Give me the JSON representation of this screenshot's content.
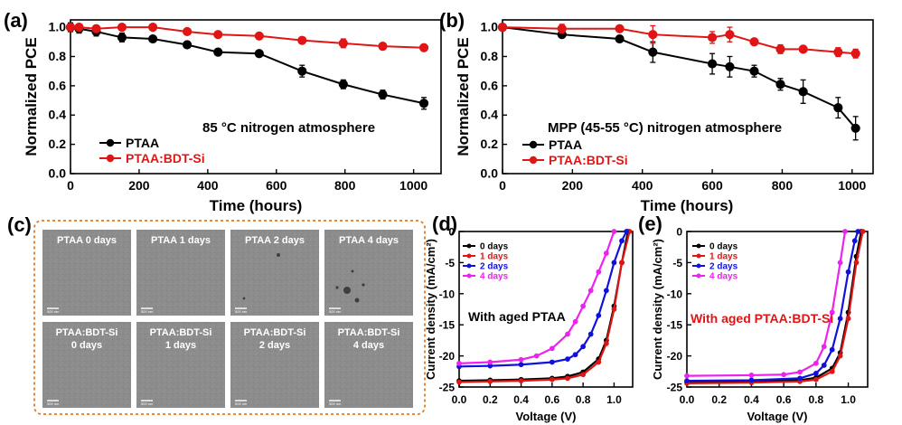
{
  "chart_data": [
    {
      "panel": "(a)",
      "type": "line",
      "title": "",
      "xlabel": "Time (hours)",
      "ylabel": "Normalized PCE",
      "annotation": "85 °C nitrogen atmosphere",
      "xlim": [
        0,
        1080
      ],
      "ylim": [
        0.0,
        1.05
      ],
      "xticks": [
        0,
        200,
        400,
        600,
        800,
        1000
      ],
      "xtick_labels": [
        "0",
        "200",
        "400",
        "600",
        "800",
        "1000"
      ],
      "yticks": [
        0.0,
        0.2,
        0.4,
        0.6,
        0.8,
        1.0
      ],
      "ytick_labels": [
        "0.0",
        "0.2",
        "0.4",
        "0.6",
        "0.8",
        "1.0"
      ],
      "legend_position": "lower-left",
      "series": [
        {
          "name": "PTAA",
          "color": "#000000",
          "x": [
            0,
            25,
            75,
            150,
            240,
            340,
            430,
            550,
            675,
            795,
            910,
            1030
          ],
          "y": [
            1.0,
            0.99,
            0.97,
            0.93,
            0.92,
            0.88,
            0.83,
            0.82,
            0.7,
            0.61,
            0.54,
            0.48
          ],
          "err": [
            0.03,
            0.03,
            0.03,
            0.03,
            0.02,
            0.02,
            0.02,
            0.02,
            0.04,
            0.03,
            0.03,
            0.04
          ]
        },
        {
          "name": "PTAA:BDT-Si",
          "color": "#e01515",
          "x": [
            0,
            25,
            75,
            150,
            240,
            340,
            430,
            550,
            675,
            795,
            910,
            1030
          ],
          "y": [
            1.0,
            1.0,
            0.99,
            1.0,
            1.0,
            0.97,
            0.95,
            0.94,
            0.91,
            0.89,
            0.87,
            0.86
          ],
          "err": [
            0.02,
            0.02,
            0.02,
            0.02,
            0.02,
            0.02,
            0.01,
            0.01,
            0.02,
            0.03,
            0.02,
            0.01
          ]
        }
      ]
    },
    {
      "panel": "(b)",
      "type": "line",
      "title": "",
      "xlabel": "Time (hours)",
      "ylabel": "Normalized PCE",
      "annotation": "MPP (45-55 °C) nitrogen atmosphere",
      "xlim": [
        0,
        1060
      ],
      "ylim": [
        0.0,
        1.05
      ],
      "xticks": [
        0,
        200,
        400,
        600,
        800,
        1000
      ],
      "xtick_labels": [
        "0",
        "200",
        "400",
        "600",
        "800",
        "1000"
      ],
      "yticks": [
        0.0,
        0.2,
        0.4,
        0.6,
        0.8,
        1.0
      ],
      "ytick_labels": [
        "0.0",
        "0.2",
        "0.4",
        "0.6",
        "0.8",
        "1.0"
      ],
      "legend_position": "lower-left",
      "series": [
        {
          "name": "PTAA",
          "color": "#000000",
          "x": [
            0,
            170,
            335,
            430,
            600,
            650,
            720,
            795,
            860,
            960,
            1010
          ],
          "y": [
            1.0,
            0.95,
            0.92,
            0.83,
            0.75,
            0.73,
            0.7,
            0.61,
            0.56,
            0.45,
            0.31
          ],
          "err": [
            0.01,
            0.02,
            0.02,
            0.07,
            0.07,
            0.07,
            0.04,
            0.04,
            0.08,
            0.07,
            0.08
          ]
        },
        {
          "name": "PTAA:BDT-Si",
          "color": "#e01515",
          "x": [
            0,
            170,
            335,
            430,
            600,
            650,
            720,
            795,
            860,
            960,
            1010
          ],
          "y": [
            1.0,
            0.99,
            0.99,
            0.95,
            0.93,
            0.95,
            0.9,
            0.85,
            0.85,
            0.83,
            0.82
          ],
          "err": [
            0.01,
            0.03,
            0.01,
            0.06,
            0.04,
            0.05,
            0.02,
            0.03,
            0.02,
            0.03,
            0.03
          ]
        }
      ]
    },
    {
      "panel": "(d)",
      "type": "line",
      "title": "",
      "xlabel": "Voltage (V)",
      "ylabel": "Current density (mA/cm²)",
      "annotation": "With aged PTAA",
      "annotation_color": "#000000",
      "xlim": [
        0.0,
        1.12
      ],
      "ylim": [
        -25,
        0
      ],
      "xticks": [
        0.0,
        0.2,
        0.4,
        0.6,
        0.8,
        1.0
      ],
      "xtick_labels": [
        "0.0",
        "0.2",
        "0.4",
        "0.6",
        "0.8",
        "1.0"
      ],
      "yticks": [
        0,
        -5,
        -10,
        -15,
        -20,
        -25
      ],
      "ytick_labels": [
        "0",
        "-5",
        "-10",
        "-15",
        "-20",
        "-25"
      ],
      "legend_position": "top-left",
      "series": [
        {
          "name": "0 days",
          "color": "#000000",
          "x": [
            0.0,
            0.2,
            0.4,
            0.6,
            0.7,
            0.8,
            0.9,
            0.95,
            1.0,
            1.05,
            1.09
          ],
          "y": [
            -24.0,
            -23.9,
            -23.8,
            -23.6,
            -23.3,
            -22.6,
            -20.5,
            -17.5,
            -12.0,
            -5.0,
            0.0
          ]
        },
        {
          "name": "1 days",
          "color": "#e01515",
          "x": [
            0.0,
            0.2,
            0.4,
            0.6,
            0.7,
            0.8,
            0.9,
            0.95,
            1.0,
            1.05,
            1.1
          ],
          "y": [
            -24.2,
            -24.1,
            -24.0,
            -23.8,
            -23.6,
            -23.0,
            -21.0,
            -18.0,
            -12.5,
            -5.0,
            0.0
          ]
        },
        {
          "name": "2 days",
          "color": "#1111dd",
          "x": [
            0.0,
            0.2,
            0.4,
            0.6,
            0.7,
            0.75,
            0.8,
            0.85,
            0.9,
            0.95,
            1.0,
            1.05,
            1.08
          ],
          "y": [
            -21.7,
            -21.6,
            -21.4,
            -21.0,
            -20.5,
            -19.8,
            -18.5,
            -16.5,
            -13.5,
            -9.5,
            -5.0,
            -1.5,
            0.0
          ]
        },
        {
          "name": "4 days",
          "color": "#ee22ee",
          "x": [
            0.0,
            0.2,
            0.4,
            0.5,
            0.6,
            0.7,
            0.75,
            0.8,
            0.85,
            0.9,
            0.95,
            1.0
          ],
          "y": [
            -21.2,
            -21.0,
            -20.6,
            -20.0,
            -18.8,
            -16.5,
            -14.5,
            -12.0,
            -9.5,
            -6.5,
            -3.5,
            0.0
          ]
        }
      ]
    },
    {
      "panel": "(e)",
      "type": "line",
      "title": "",
      "xlabel": "Voltage (V)",
      "ylabel": "Current density (mA/cm²)",
      "annotation": "With aged PTAA:BDT-Si",
      "annotation_color": "#e01515",
      "xlim": [
        0.0,
        1.12
      ],
      "ylim": [
        -25,
        0
      ],
      "xticks": [
        0.0,
        0.2,
        0.4,
        0.6,
        0.8,
        1.0
      ],
      "xtick_labels": [
        "0.0",
        "0.2",
        "0.4",
        "0.6",
        "0.8",
        "1.0"
      ],
      "yticks": [
        0,
        -5,
        -10,
        -15,
        -20,
        -25
      ],
      "ytick_labels": [
        "0",
        "-5",
        "-10",
        "-15",
        "-20",
        "-25"
      ],
      "legend_position": "top-left",
      "series": [
        {
          "name": "0 days",
          "color": "#000000",
          "x": [
            0.0,
            0.4,
            0.7,
            0.8,
            0.9,
            0.95,
            1.0,
            1.05,
            1.08
          ],
          "y": [
            -24.2,
            -24.1,
            -23.9,
            -23.5,
            -22.0,
            -19.5,
            -13.0,
            -4.0,
            0.0
          ]
        },
        {
          "name": "1 days",
          "color": "#e01515",
          "x": [
            0.0,
            0.4,
            0.7,
            0.8,
            0.9,
            0.95,
            1.0,
            1.05,
            1.09
          ],
          "y": [
            -24.4,
            -24.3,
            -24.1,
            -23.8,
            -22.5,
            -20.0,
            -14.0,
            -5.0,
            0.0
          ]
        },
        {
          "name": "2 days",
          "color": "#1111dd",
          "x": [
            0.0,
            0.4,
            0.7,
            0.8,
            0.85,
            0.9,
            0.95,
            1.0,
            1.04,
            1.06
          ],
          "y": [
            -24.0,
            -23.9,
            -23.6,
            -22.8,
            -21.5,
            -19.0,
            -14.0,
            -6.5,
            -1.5,
            0.0
          ]
        },
        {
          "name": "4 days",
          "color": "#ee22ee",
          "x": [
            0.0,
            0.4,
            0.6,
            0.7,
            0.8,
            0.85,
            0.9,
            0.95,
            0.98
          ],
          "y": [
            -23.2,
            -23.1,
            -23.0,
            -22.6,
            -21.2,
            -18.5,
            -13.0,
            -5.0,
            0.0
          ]
        }
      ]
    }
  ],
  "panel_c": {
    "label": "(c)",
    "tiles": [
      {
        "label": "PTAA 0 days",
        "scale": "500 nm"
      },
      {
        "label": "PTAA 1 days",
        "scale": "500 nm"
      },
      {
        "label": "PTAA 2 days",
        "scale": "500 nm"
      },
      {
        "label": "PTAA 4 days",
        "scale": "500 nm"
      },
      {
        "label": "PTAA:BDT-Si\n0 days",
        "scale": "500 nm"
      },
      {
        "label": "PTAA:BDT-Si\n1 days",
        "scale": "500 nm"
      },
      {
        "label": "PTAA:BDT-Si\n2 days",
        "scale": "500 nm"
      },
      {
        "label": "PTAA:BDT-Si\n4 days",
        "scale": "500 nm"
      }
    ],
    "border_color": "#e07a2a"
  }
}
